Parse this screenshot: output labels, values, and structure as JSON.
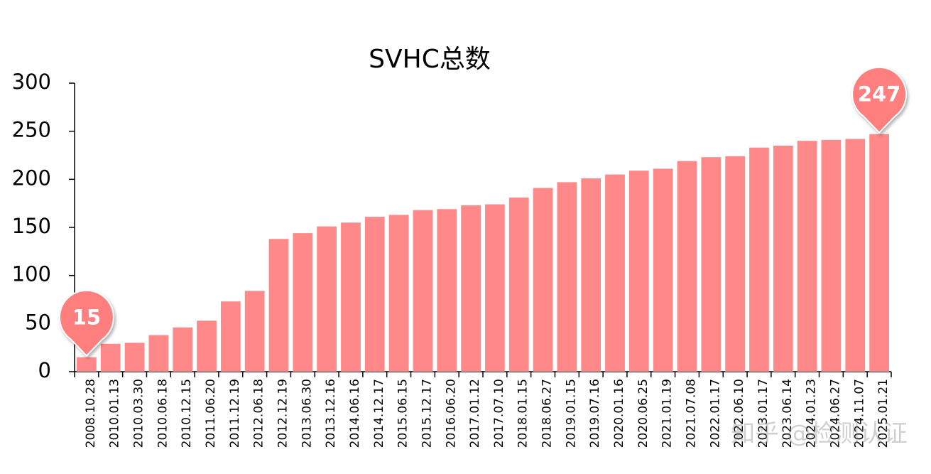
{
  "chart_data": {
    "type": "bar",
    "title": "SVHC总数",
    "categories": [
      "2008.10.28",
      "2010.01.13",
      "2010.03.30",
      "2010.06.18",
      "2010.12.15",
      "2011.06.20",
      "2011.12.19",
      "2012.06.18",
      "2012.12.19",
      "2013.06.30",
      "2013.12.16",
      "2014.06.16",
      "2014.12.17",
      "2015.06.15",
      "2015.12.17",
      "2016.06.20",
      "2017.01.12",
      "2017.07.10",
      "2018.01.15",
      "2018.06.27",
      "2019.01.15",
      "2019.07.16",
      "2020.01.16",
      "2020.06.25",
      "2021.01.19",
      "2021.07.08",
      "2022.01.17",
      "2022.06.10",
      "2023.01.17",
      "2023.06.14",
      "2024.01.23",
      "2024.06.27",
      "2024.11.07",
      "2025.01.21"
    ],
    "values": [
      15,
      29,
      30,
      38,
      46,
      53,
      73,
      84,
      138,
      144,
      151,
      155,
      161,
      163,
      168,
      169,
      173,
      174,
      181,
      191,
      197,
      201,
      205,
      209,
      211,
      219,
      223,
      224,
      233,
      235,
      240,
      241,
      242,
      247
    ],
    "color": "#ff8888",
    "ylim": [
      0,
      300
    ],
    "yticks": [
      0,
      50,
      100,
      150,
      200,
      250,
      300
    ],
    "grid": false,
    "watermark": "知乎 @检测认证"
  }
}
